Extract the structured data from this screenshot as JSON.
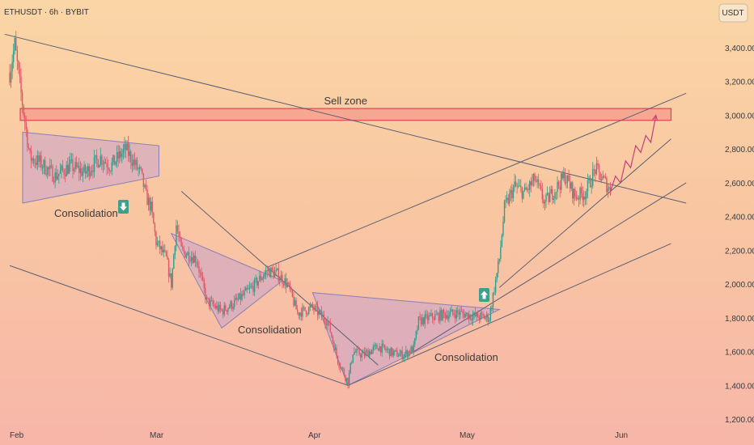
{
  "header": {
    "symbol_label": "ETHUSDT · 6h · BYBIT",
    "currency_badge": "USDT"
  },
  "chart_data": {
    "type": "candlestick",
    "title": "ETHUSDT · 6h · BYBIT",
    "y_unit": "USDT",
    "ylim": [
      1130,
      3550
    ],
    "y_ticks": [
      "3,400.00",
      "3,200.00",
      "3,000.00",
      "2,800.00",
      "2,600.00",
      "2,400.00",
      "2,200.00",
      "2,000.00",
      "1,800.00",
      "1,600.00",
      "1,400.00",
      "1,200.00"
    ],
    "x_ticks": [
      "Feb",
      "Mar",
      "Apr",
      "May",
      "Jun"
    ],
    "price_path": [
      [
        "Feb 1",
        3250
      ],
      [
        "Feb 2",
        3420
      ],
      [
        "Feb 3",
        3180
      ],
      [
        "Feb 5",
        2750
      ],
      [
        "Feb 7",
        2720
      ],
      [
        "Feb 10",
        2640
      ],
      [
        "Feb 13",
        2700
      ],
      [
        "Feb 16",
        2660
      ],
      [
        "Feb 19",
        2750
      ],
      [
        "Feb 21",
        2700
      ],
      [
        "Feb 24",
        2800
      ],
      [
        "Feb 27",
        2650
      ],
      [
        "Feb 28",
        2520
      ],
      [
        "Mar 1",
        2450
      ],
      [
        "Mar 2",
        2250
      ],
      [
        "Mar 4",
        2150
      ],
      [
        "Mar 5",
        2000
      ],
      [
        "Mar 6",
        2350
      ],
      [
        "Mar 7",
        2200
      ],
      [
        "Mar 10",
        2150
      ],
      [
        "Mar 12",
        1900
      ],
      [
        "Mar 15",
        1840
      ],
      [
        "Mar 18",
        1900
      ],
      [
        "Mar 21",
        1980
      ],
      [
        "Mar 24",
        2080
      ],
      [
        "Mar 26",
        2060
      ],
      [
        "Mar 28",
        2000
      ],
      [
        "Mar 30",
        1830
      ],
      [
        "Apr 2",
        1860
      ],
      [
        "Apr 5",
        1780
      ],
      [
        "Apr 7",
        1550
      ],
      [
        "Apr 9",
        1420
      ],
      [
        "Apr 10",
        1600
      ],
      [
        "Apr 12",
        1580
      ],
      [
        "Apr 15",
        1630
      ],
      [
        "Apr 18",
        1590
      ],
      [
        "Apr 20",
        1580
      ],
      [
        "Apr 22",
        1620
      ],
      [
        "Apr 23",
        1780
      ],
      [
        "Apr 25",
        1800
      ],
      [
        "Apr 28",
        1820
      ],
      [
        "May 1",
        1830
      ],
      [
        "May 4",
        1810
      ],
      [
        "May 7",
        1800
      ],
      [
        "May 9",
        2150
      ],
      [
        "May 10",
        2450
      ],
      [
        "May 12",
        2580
      ],
      [
        "May 14",
        2540
      ],
      [
        "May 16",
        2620
      ],
      [
        "May 18",
        2480
      ],
      [
        "May 20",
        2560
      ],
      [
        "May 22",
        2640
      ],
      [
        "May 24",
        2520
      ],
      [
        "May 26",
        2540
      ],
      [
        "May 28",
        2680
      ],
      [
        "May 30",
        2600
      ],
      [
        "May 31",
        2550
      ]
    ],
    "projection_path": [
      [
        "May 31",
        2550
      ],
      [
        "Jun 1",
        2640
      ],
      [
        "Jun 2",
        2600
      ],
      [
        "Jun 3",
        2730
      ],
      [
        "Jun 4",
        2690
      ],
      [
        "Jun 5",
        2820
      ],
      [
        "Jun 6",
        2780
      ],
      [
        "Jun 7",
        2880
      ],
      [
        "Jun 8",
        2840
      ],
      [
        "Jun 9",
        3000
      ]
    ],
    "zones": [
      {
        "label": "Sell zone",
        "from": "Feb 1",
        "to": "Jun 12",
        "low": 2970,
        "high": 3040
      }
    ],
    "trendlines": [
      {
        "from": [
          "Jan 31",
          3480
        ],
        "to": [
          "Jun 15",
          2480
        ]
      },
      {
        "from": [
          "Feb 1",
          2110
        ],
        "to": [
          "Apr 9",
          1400
        ]
      },
      {
        "from": [
          "Apr 9",
          1400
        ],
        "to": [
          "Jun 12",
          2240
        ]
      },
      {
        "from": [
          "Mar 7",
          2550
        ],
        "to": [
          "Apr 15",
          1520
        ]
      },
      {
        "from": [
          "Mar 24",
          2100
        ],
        "to": [
          "Jun 15",
          3130
        ]
      },
      {
        "from": [
          "Apr 22",
          1600
        ],
        "to": [
          "Jun 15",
          2600
        ]
      },
      {
        "from": [
          "May 9",
          1980
        ],
        "to": [
          "Jun 12",
          2860
        ]
      }
    ],
    "consolidations": [
      {
        "label": "Consolidation",
        "direction": "down",
        "points": [
          [
            "Feb 1",
            2900
          ],
          [
            "Feb 28",
            2820
          ],
          [
            "Feb 28",
            2640
          ],
          [
            "Feb 1",
            2480
          ]
        ]
      },
      {
        "label": "Consolidation",
        "direction": "none",
        "points": [
          [
            "Mar 5",
            2300
          ],
          [
            "Mar 27",
            2020
          ],
          [
            "Mar 15",
            1740
          ]
        ]
      },
      {
        "label": "Consolidation",
        "direction": "up",
        "points": [
          [
            "Apr 2",
            1950
          ],
          [
            "May 9",
            1850
          ],
          [
            "Apr 9",
            1400
          ]
        ]
      }
    ]
  }
}
